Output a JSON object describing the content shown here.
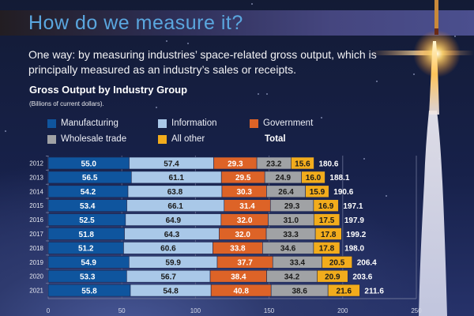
{
  "header": {
    "title": "How do we measure it?",
    "subtitle": "One way: by measuring industries’ space-related gross output, which is principally measured as an industry’s sales or receipts."
  },
  "chart_data": {
    "type": "bar",
    "orientation": "horizontal",
    "stacked": true,
    "title": "Gross Output by Industry Group",
    "subtitle": "(Billions of current dollars).",
    "xlabel": "",
    "ylabel": "",
    "xlim": [
      0,
      250
    ],
    "xticks": [
      0,
      50,
      100,
      150,
      200,
      250
    ],
    "grid": true,
    "legend_position": "top",
    "total_label": "Total",
    "categories": [
      "2012",
      "2013",
      "2014",
      "2015",
      "2016",
      "2017",
      "2018",
      "2019",
      "2020",
      "2021"
    ],
    "series": [
      {
        "name": "Manufacturing",
        "color": "#0f559e",
        "label_color": "#ffffff",
        "values": [
          55.0,
          56.5,
          54.2,
          53.4,
          52.5,
          51.8,
          51.2,
          54.9,
          53.3,
          55.8
        ]
      },
      {
        "name": "Information",
        "color": "#a9c8e8",
        "label_color": "#1a1a1a",
        "values": [
          57.4,
          61.1,
          63.8,
          66.1,
          64.9,
          64.3,
          60.6,
          59.9,
          56.7,
          54.8
        ]
      },
      {
        "name": "Government",
        "color": "#dd6327",
        "label_color": "#ffffff",
        "values": [
          29.3,
          29.5,
          30.3,
          31.4,
          32.0,
          32.0,
          33.8,
          37.7,
          38.4,
          40.8
        ]
      },
      {
        "name": "Wholesale trade",
        "color": "#a0a2a5",
        "label_color": "#1a1a1a",
        "values": [
          23.2,
          24.9,
          26.4,
          29.3,
          31.0,
          33.3,
          34.6,
          33.4,
          34.2,
          38.6
        ]
      },
      {
        "name": "All other",
        "color": "#f2ac1c",
        "label_color": "#1a1a1a",
        "values": [
          15.6,
          16.0,
          15.9,
          16.9,
          17.5,
          17.8,
          17.8,
          20.5,
          20.9,
          21.6
        ]
      }
    ],
    "totals": [
      180.6,
      188.1,
      190.6,
      197.1,
      197.9,
      199.2,
      198.0,
      206.4,
      203.6,
      211.6
    ]
  }
}
